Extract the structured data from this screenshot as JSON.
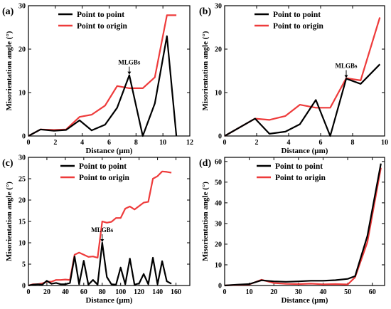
{
  "chart_data": [
    {
      "panel_label": "(a)",
      "type": "line",
      "xlabel": "Distance (µm)",
      "ylabel": "Misorientation angle (°)",
      "xlim": [
        0,
        12
      ],
      "ylim": [
        0,
        30
      ],
      "xticks": [
        0,
        2,
        4,
        6,
        8,
        10,
        12
      ],
      "yticks": [
        0,
        10,
        20,
        30
      ],
      "legend_position": "top-right",
      "series": [
        {
          "name": "Point to point",
          "color": "#000000",
          "x": [
            0,
            0.9,
            1.9,
            2.8,
            3.8,
            4.7,
            5.7,
            6.6,
            7.5,
            8.5,
            9.4,
            10.3,
            11.0
          ],
          "y": [
            0,
            1.5,
            1.2,
            1.4,
            3.6,
            1.3,
            2.6,
            6.5,
            14.0,
            0.0,
            7.5,
            23.0,
            0.0
          ]
        },
        {
          "name": "Point to origin",
          "color": "#ee3b3b",
          "x": [
            0,
            0.9,
            1.9,
            2.8,
            3.8,
            4.7,
            5.7,
            6.6,
            7.5,
            8.5,
            9.4,
            10.3,
            11.0
          ],
          "y": [
            0,
            1.5,
            1.4,
            1.5,
            4.4,
            4.9,
            7.0,
            11.5,
            11.0,
            11.0,
            13.5,
            27.8,
            27.8
          ]
        }
      ],
      "annotations": [
        {
          "text": "MLGBs",
          "x": 7.5,
          "y": 14.0
        }
      ]
    },
    {
      "panel_label": "(b)",
      "type": "line",
      "xlabel": "Distance (µm)",
      "ylabel": "Misorientation angle (°)",
      "xlim": [
        0,
        10
      ],
      "ylim": [
        0,
        30
      ],
      "xticks": [
        0,
        2,
        4,
        6,
        8,
        10
      ],
      "yticks": [
        0,
        10,
        20,
        30
      ],
      "legend_position": "top-right",
      "series": [
        {
          "name": "Point to point",
          "color": "#000000",
          "x": [
            0,
            1.9,
            2.8,
            3.8,
            4.7,
            5.7,
            6.6,
            7.6,
            8.5,
            9.7
          ],
          "y": [
            0,
            4.0,
            0.5,
            1.0,
            2.7,
            8.3,
            0.0,
            13.2,
            12.0,
            16.5
          ]
        },
        {
          "name": "Point to origin",
          "color": "#ee3b3b",
          "x": [
            0,
            1.9,
            2.8,
            3.8,
            4.7,
            5.7,
            6.6,
            7.6,
            8.5,
            9.7
          ],
          "y": [
            0,
            4.0,
            3.7,
            4.6,
            7.2,
            6.5,
            6.5,
            13.3,
            12.8,
            27.3
          ]
        }
      ],
      "annotations": [
        {
          "text": "MLGBs",
          "x": 7.6,
          "y": 13.2
        }
      ]
    },
    {
      "panel_label": "(c)",
      "type": "line",
      "xlabel": "Distance (µm)",
      "ylabel": "Misorientation angle (°)",
      "xlim": [
        0,
        175
      ],
      "ylim": [
        0,
        30
      ],
      "xticks": [
        0,
        20,
        40,
        60,
        80,
        100,
        120,
        140,
        160
      ],
      "yticks": [
        0,
        5,
        10,
        15,
        20,
        25,
        30
      ],
      "legend_position": "top-left",
      "series": [
        {
          "name": "Point to point",
          "color": "#000000",
          "x": [
            0,
            5,
            10,
            15,
            20,
            25,
            30,
            35,
            40,
            45,
            50,
            55,
            60,
            65,
            70,
            75,
            80,
            85,
            90,
            95,
            100,
            105,
            110,
            115,
            120,
            125,
            130,
            135,
            140,
            145,
            150,
            155
          ],
          "y": [
            0,
            0.2,
            0.3,
            0.2,
            1.1,
            0.4,
            0.6,
            0.3,
            0.3,
            0.6,
            6.8,
            0.3,
            5.8,
            0.2,
            1.3,
            0.2,
            10.0,
            2.0,
            0.3,
            0.2,
            4.2,
            0.3,
            6.3,
            0.2,
            0.5,
            2.7,
            0.3,
            6.5,
            0.3,
            5.7,
            1.0,
            0.4
          ]
        },
        {
          "name": "Point to origin",
          "color": "#ee3b3b",
          "x": [
            0,
            5,
            10,
            15,
            20,
            25,
            30,
            35,
            40,
            45,
            50,
            55,
            60,
            65,
            70,
            75,
            80,
            85,
            90,
            95,
            100,
            105,
            110,
            115,
            120,
            125,
            130,
            135,
            140,
            145,
            150,
            155
          ],
          "y": [
            0,
            0.3,
            0.3,
            0.5,
            0.9,
            0.9,
            1.3,
            1.3,
            1.4,
            1.3,
            7.2,
            7.7,
            7.2,
            6.7,
            6.8,
            6.5,
            15.0,
            14.7,
            14.9,
            15.8,
            15.8,
            18.0,
            18.5,
            17.8,
            18.6,
            19.4,
            19.6,
            25.0,
            25.6,
            26.7,
            26.6,
            26.4
          ]
        }
      ],
      "annotations": [
        {
          "text": "MLGBs",
          "x": 80,
          "y": 10.0
        }
      ]
    },
    {
      "panel_label": "(d)",
      "type": "line",
      "xlabel": "Distance (µm)",
      "ylabel": "Misorientation angle (°)",
      "xlim": [
        0,
        65
      ],
      "ylim": [
        0,
        62
      ],
      "xticks": [
        0,
        10,
        20,
        30,
        40,
        50,
        60
      ],
      "yticks": [
        0,
        10,
        20,
        30,
        40,
        50,
        60
      ],
      "legend_position": "top-left",
      "series": [
        {
          "name": "Point to point",
          "color": "#000000",
          "x": [
            0,
            5,
            10,
            15,
            20,
            25,
            30,
            35,
            40,
            45,
            50,
            53,
            58,
            63.5
          ],
          "y": [
            0,
            0.4,
            0.7,
            2.5,
            2.0,
            1.8,
            2.0,
            2.3,
            2.3,
            2.6,
            3.2,
            4.5,
            24.0,
            59.0
          ]
        },
        {
          "name": "Point to origin",
          "color": "#ee3b3b",
          "x": [
            0,
            5,
            10,
            15,
            20,
            25,
            30,
            35,
            40,
            45,
            50,
            53,
            58,
            63.5
          ],
          "y": [
            0,
            0.3,
            0.5,
            2.8,
            1.2,
            0.8,
            0.7,
            0.9,
            0.6,
            0.7,
            0.5,
            4.0,
            21.0,
            57.0
          ]
        }
      ],
      "annotations": []
    }
  ]
}
